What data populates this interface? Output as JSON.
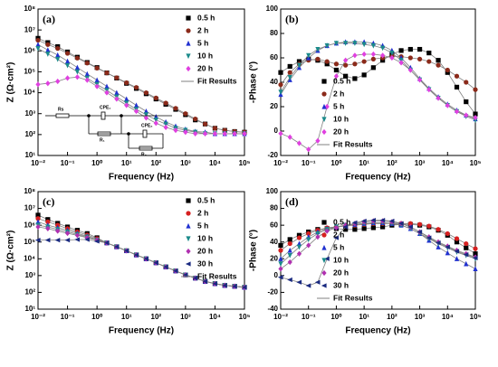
{
  "chart_data": [
    {
      "type": "scatter",
      "label": "(a)",
      "x_label": "Frequency (Hz)",
      "y_label": "Z (Ω·cm²)",
      "xscale": "log",
      "yscale": "log",
      "xlim": [
        0.01,
        100000
      ],
      "ylim": [
        10,
        100000000
      ],
      "xticks": [
        {
          "value": 0.01,
          "label": "10⁻²"
        },
        {
          "value": 0.1,
          "label": "10⁻¹"
        },
        {
          "value": 1,
          "label": "10⁰"
        },
        {
          "value": 10,
          "label": "10¹"
        },
        {
          "value": 100,
          "label": "10²"
        },
        {
          "value": 1000,
          "label": "10³"
        },
        {
          "value": 10000,
          "label": "10⁴"
        },
        {
          "value": 100000,
          "label": "10⁵"
        }
      ],
      "yticks": [
        {
          "value": 10,
          "label": "10¹"
        },
        {
          "value": 100,
          "label": "10²"
        },
        {
          "value": 1000,
          "label": "10³"
        },
        {
          "value": 10000,
          "label": "10⁴"
        },
        {
          "value": 100000,
          "label": "10⁵"
        },
        {
          "value": 1000000,
          "label": "10⁶"
        },
        {
          "value": 10000000,
          "label": "10⁷"
        },
        {
          "value": 100000000,
          "label": "10⁸"
        }
      ],
      "legend": "upper right",
      "x": [
        0.01,
        0.0215,
        0.0464,
        0.1,
        0.215,
        0.464,
        1,
        2.15,
        4.64,
        10,
        21.5,
        46.4,
        100,
        215,
        464,
        1000,
        2150,
        4640,
        10000,
        21500,
        46400,
        100000
      ],
      "series": [
        {
          "name": "0.5 h",
          "color": "#000000",
          "marker": "square",
          "values": [
            4000000.0,
            2500000.0,
            1600000.0,
            890000.0,
            500000.0,
            280000.0,
            160000.0,
            89000.0,
            50000.0,
            28000.0,
            16000.0,
            8900.0,
            5000.0,
            2800.0,
            1600.0,
            890,
            500,
            320,
            200,
            160,
            140,
            130
          ]
        },
        {
          "name": "2 h",
          "color": "#8b2a1a",
          "marker": "circle",
          "values": [
            3200000.0,
            2000000.0,
            1300000.0,
            760000.0,
            450000.0,
            260000.0,
            150000.0,
            89000.0,
            52000.0,
            30000.0,
            18000.0,
            10000.0,
            5600.0,
            3200.0,
            1800.0,
            1000,
            560,
            320,
            200,
            160,
            140,
            130
          ]
        },
        {
          "name": "5 h",
          "color": "#2030d0",
          "marker": "triangle-up",
          "values": [
            2000000.0,
            1100000.0,
            630000.0,
            320000.0,
            160000.0,
            79000.0,
            40000.0,
            20000.0,
            10000.0,
            5000.0,
            2500.0,
            1300.0,
            710,
            400,
            250,
            180,
            140,
            130,
            110,
            110,
            110,
            110
          ]
        },
        {
          "name": "10 h",
          "color": "#1a8a8a",
          "marker": "triangle-down",
          "values": [
            1300000.0,
            710000.0,
            400000.0,
            200000.0,
            100000.0,
            50000.0,
            25000.0,
            13000.0,
            6300.0,
            3200.0,
            1600.0,
            890,
            500,
            320,
            200,
            160,
            130,
            110,
            110,
            110,
            110,
            110
          ]
        },
        {
          "name": "20 h",
          "color": "#e040e0",
          "marker": "diamond",
          "values": [
            25000.0,
            28000.0,
            35000.0,
            50000.0,
            56000.0,
            40000.0,
            20000.0,
            10000.0,
            5000.0,
            2500.0,
            1300.0,
            630,
            350,
            220,
            160,
            130,
            110,
            110,
            110,
            110,
            110,
            110
          ]
        }
      ],
      "fit": {
        "name": "Fit Results",
        "color": "#808080"
      },
      "circuit": [
        "Rs",
        "CPE₁",
        "R₁",
        "CPE₂",
        "R₂"
      ]
    },
    {
      "type": "scatter",
      "label": "(b)",
      "x_label": "Frequency (Hz)",
      "y_label": "-Phase (°)",
      "xscale": "log",
      "yscale": "linear",
      "xlim": [
        0.01,
        100000
      ],
      "ylim": [
        -20,
        100
      ],
      "xticks": [
        {
          "value": 0.01,
          "label": "10⁻²"
        },
        {
          "value": 0.1,
          "label": "10⁻¹"
        },
        {
          "value": 1,
          "label": "10⁰"
        },
        {
          "value": 10,
          "label": "10¹"
        },
        {
          "value": 100,
          "label": "10²"
        },
        {
          "value": 1000,
          "label": "10³"
        },
        {
          "value": 10000,
          "label": "10⁴"
        },
        {
          "value": 100000,
          "label": "10⁵"
        }
      ],
      "yticks": [
        -20,
        0,
        20,
        40,
        60,
        80,
        100
      ],
      "legend": "lower center",
      "x": [
        0.01,
        0.0215,
        0.0464,
        0.1,
        0.215,
        0.464,
        1,
        2.15,
        4.64,
        10,
        21.5,
        46.4,
        100,
        215,
        464,
        1000,
        2150,
        4640,
        10000,
        21500,
        46400,
        100000
      ],
      "series": [
        {
          "name": "0.5 h",
          "color": "#000000",
          "marker": "square",
          "values": [
            48,
            53,
            57,
            59,
            58,
            55,
            50,
            45,
            43,
            46,
            52,
            58,
            63,
            66,
            67,
            67,
            64,
            58,
            48,
            36,
            24,
            14
          ]
        },
        {
          "name": "2 h",
          "color": "#8b2a1a",
          "marker": "circle",
          "values": [
            38,
            48,
            55,
            58,
            59,
            57,
            55,
            54,
            55,
            57,
            59,
            60,
            61,
            61,
            60,
            59,
            57,
            54,
            50,
            45,
            40,
            34
          ]
        },
        {
          "name": "5 h",
          "color": "#2030d0",
          "marker": "triangle-up",
          "values": [
            30,
            42,
            52,
            60,
            66,
            70,
            72,
            73,
            73,
            73,
            72,
            70,
            66,
            60,
            52,
            43,
            35,
            28,
            22,
            17,
            13,
            10
          ]
        },
        {
          "name": "10 h",
          "color": "#1a8a8a",
          "marker": "triangle-down",
          "values": [
            32,
            44,
            54,
            62,
            67,
            70,
            72,
            72,
            72,
            71,
            70,
            68,
            64,
            58,
            50,
            42,
            34,
            27,
            21,
            16,
            12,
            9
          ]
        },
        {
          "name": "20 h",
          "color": "#e040e0",
          "marker": "diamond",
          "values": [
            -2,
            -5,
            -10,
            -15,
            -8,
            20,
            45,
            58,
            62,
            63,
            63,
            62,
            60,
            56,
            50,
            42,
            34,
            27,
            21,
            16,
            13,
            11
          ]
        }
      ],
      "fit": {
        "name": "Fit Results",
        "color": "#808080"
      }
    },
    {
      "type": "scatter",
      "label": "(c)",
      "x_label": "Frequency (Hz)",
      "y_label": "Z (Ω·cm²)",
      "xscale": "log",
      "yscale": "log",
      "xlim": [
        0.01,
        100000
      ],
      "ylim": [
        10,
        100000000
      ],
      "xticks": [
        {
          "value": 0.01,
          "label": "10⁻²"
        },
        {
          "value": 0.1,
          "label": "10⁻¹"
        },
        {
          "value": 1,
          "label": "10⁰"
        },
        {
          "value": 10,
          "label": "10¹"
        },
        {
          "value": 100,
          "label": "10²"
        },
        {
          "value": 1000,
          "label": "10³"
        },
        {
          "value": 10000,
          "label": "10⁴"
        },
        {
          "value": 100000,
          "label": "10⁵"
        }
      ],
      "yticks": [
        {
          "value": 10,
          "label": "10¹"
        },
        {
          "value": 100,
          "label": "10²"
        },
        {
          "value": 1000,
          "label": "10³"
        },
        {
          "value": 10000,
          "label": "10⁴"
        },
        {
          "value": 100000,
          "label": "10⁵"
        },
        {
          "value": 1000000,
          "label": "10⁶"
        },
        {
          "value": 10000000,
          "label": "10⁷"
        },
        {
          "value": 100000000,
          "label": "10⁸"
        }
      ],
      "legend": "upper right",
      "x": [
        0.01,
        0.0215,
        0.0464,
        0.1,
        0.215,
        0.464,
        1,
        2.15,
        4.64,
        10,
        21.5,
        46.4,
        100,
        215,
        464,
        1000,
        2150,
        4640,
        10000,
        21500,
        46400,
        100000
      ],
      "series": [
        {
          "name": "0.5 h",
          "color": "#000000",
          "marker": "square",
          "values": [
            4000000.0,
            2200000.0,
            1300000.0,
            790000.0,
            500000.0,
            320000.0,
            180000.0,
            89000.0,
            52000.0,
            30000.0,
            17000.0,
            10000.0,
            5800.0,
            3300.0,
            1900.0,
            1100.0,
            710,
            450,
            330,
            260,
            230,
            200
          ]
        },
        {
          "name": "2 h",
          "color": "#d62020",
          "marker": "circle",
          "values": [
            2500000.0,
            1600000.0,
            1000000.0,
            630000.0,
            400000.0,
            260000.0,
            160000.0,
            89000.0,
            52000.0,
            30000.0,
            17000.0,
            10000.0,
            5800.0,
            3300.0,
            1900.0,
            1100.0,
            710,
            450,
            330,
            260,
            230,
            200
          ]
        },
        {
          "name": "5 h",
          "color": "#2030d0",
          "marker": "triangle-up",
          "values": [
            1600000.0,
            1000000.0,
            710000.0,
            500000.0,
            330000.0,
            220000.0,
            140000.0,
            89000.0,
            52000.0,
            30000.0,
            17000.0,
            10000.0,
            5800.0,
            3300.0,
            1900.0,
            1100.0,
            710,
            450,
            330,
            260,
            230,
            200
          ]
        },
        {
          "name": "10 h",
          "color": "#1a8a8a",
          "marker": "triangle-down",
          "values": [
            1000000.0,
            790000.0,
            560000.0,
            400000.0,
            280000.0,
            200000.0,
            130000.0,
            89000.0,
            52000.0,
            30000.0,
            17000.0,
            10000.0,
            5800.0,
            3300.0,
            1900.0,
            1100.0,
            710,
            450,
            330,
            260,
            230,
            200
          ]
        },
        {
          "name": "20 h",
          "color": "#b030b0",
          "marker": "diamond",
          "values": [
            790000.0,
            630000.0,
            450000.0,
            330000.0,
            250000.0,
            180000.0,
            130000.0,
            89000.0,
            52000.0,
            30000.0,
            17000.0,
            10000.0,
            5800.0,
            3300.0,
            1900.0,
            1100.0,
            710,
            450,
            330,
            260,
            230,
            200
          ]
        },
        {
          "name": "30 h",
          "color": "#1a2a80",
          "marker": "triangle-left",
          "values": [
            130000.0,
            130000.0,
            130000.0,
            130000.0,
            140000.0,
            140000.0,
            110000.0,
            89000.0,
            52000.0,
            30000.0,
            17000.0,
            10000.0,
            5800.0,
            3300.0,
            1900.0,
            1100.0,
            710,
            450,
            330,
            260,
            230,
            200
          ]
        }
      ],
      "fit": {
        "name": "Fit Results",
        "color": "#808080"
      }
    },
    {
      "type": "scatter",
      "label": "(d)",
      "x_label": "Frequency (Hz)",
      "y_label": "-Phase (°)",
      "xscale": "log",
      "yscale": "linear",
      "xlim": [
        0.01,
        100000
      ],
      "ylim": [
        -40,
        100
      ],
      "xticks": [
        {
          "value": 0.01,
          "label": "10⁻²"
        },
        {
          "value": 0.1,
          "label": "10⁻¹"
        },
        {
          "value": 1,
          "label": "10⁰"
        },
        {
          "value": 10,
          "label": "10¹"
        },
        {
          "value": 100,
          "label": "10²"
        },
        {
          "value": 1000,
          "label": "10³"
        },
        {
          "value": 10000,
          "label": "10⁴"
        },
        {
          "value": 100000,
          "label": "10⁵"
        }
      ],
      "yticks": [
        -40,
        -20,
        0,
        20,
        40,
        60,
        80,
        100
      ],
      "legend": "lower center",
      "x": [
        0.01,
        0.0215,
        0.0464,
        0.1,
        0.215,
        0.464,
        1,
        2.15,
        4.64,
        10,
        21.5,
        46.4,
        100,
        215,
        464,
        1000,
        2150,
        4640,
        10000,
        21500,
        46400,
        100000
      ],
      "series": [
        {
          "name": "0.5 h",
          "color": "#000000",
          "marker": "square",
          "values": [
            36,
            43,
            48,
            52,
            55,
            56,
            56,
            55,
            55,
            56,
            57,
            58,
            60,
            61,
            61,
            60,
            58,
            54,
            48,
            40,
            33,
            26
          ]
        },
        {
          "name": "2 h",
          "color": "#d62020",
          "marker": "circle",
          "values": [
            30,
            38,
            45,
            50,
            54,
            57,
            58,
            59,
            60,
            61,
            62,
            62,
            62,
            62,
            62,
            61,
            59,
            55,
            50,
            44,
            38,
            32
          ]
        },
        {
          "name": "5 h",
          "color": "#2030d0",
          "marker": "triangle-up",
          "values": [
            20,
            30,
            38,
            46,
            52,
            56,
            58,
            60,
            61,
            62,
            63,
            63,
            62,
            60,
            56,
            50,
            42,
            34,
            27,
            20,
            14,
            8
          ]
        },
        {
          "name": "10 h",
          "color": "#1a8a8a",
          "marker": "triangle-down",
          "values": [
            14,
            24,
            34,
            43,
            50,
            55,
            58,
            60,
            61,
            62,
            63,
            63,
            62,
            60,
            56,
            50,
            44,
            38,
            33,
            28,
            24,
            20
          ]
        },
        {
          "name": "20 h",
          "color": "#b030b0",
          "marker": "diamond",
          "values": [
            8,
            16,
            26,
            36,
            46,
            53,
            57,
            60,
            62,
            64,
            65,
            65,
            64,
            62,
            58,
            52,
            46,
            40,
            35,
            30,
            26,
            22
          ]
        },
        {
          "name": "30 h",
          "color": "#1a2a80",
          "marker": "triangle-left",
          "values": [
            -2,
            -5,
            -8,
            -12,
            -8,
            20,
            45,
            58,
            63,
            65,
            66,
            66,
            65,
            62,
            58,
            52,
            45,
            39,
            34,
            29,
            25,
            21
          ]
        }
      ],
      "fit": {
        "name": "Fit Results",
        "color": "#808080"
      }
    }
  ]
}
